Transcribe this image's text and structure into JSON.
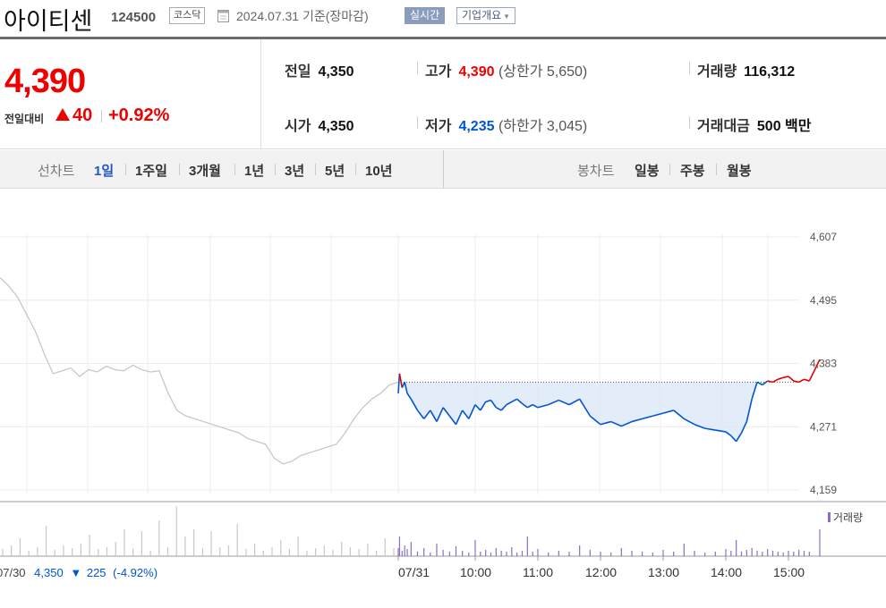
{
  "header": {
    "stock_name": "아이티센",
    "stock_code": "124500",
    "market": "코스닥",
    "as_of": "2024.07.31  기준(장마감)",
    "realtime_label": "실시간",
    "company_info_label": "기업개요"
  },
  "summary": {
    "current_price": "4,390",
    "change_label": "전일대비",
    "change_value": "40",
    "change_pct": "+0.92%",
    "prev_label": "전일",
    "prev_value": "4,350",
    "high_label": "고가",
    "high_value": "4,390",
    "upper_limit": "(상한가 5,650)",
    "volume_label": "거래량",
    "volume_value": "116,312",
    "open_label": "시가",
    "open_value": "4,350",
    "low_label": "저가",
    "low_value": "4,235",
    "lower_limit": "(하한가 3,045)",
    "turnover_label": "거래대금",
    "turnover_value": "500 백만"
  },
  "tabs": {
    "line_chart_label": "선차트",
    "line_ranges": [
      "1일",
      "1주일",
      "3개월",
      "1년",
      "3년",
      "5년",
      "10년"
    ],
    "active_range": "1일",
    "candle_chart_label": "봉차트",
    "candle_ranges": [
      "일봉",
      "주봉",
      "월봉"
    ]
  },
  "chart_data": {
    "type": "line",
    "y_ticks": [
      "4,607",
      "4,495",
      "4,383",
      "4,271",
      "4,159"
    ],
    "ylim": [
      4159,
      4607
    ],
    "x_ticks": [
      "07/31",
      "10:00",
      "11:00",
      "12:00",
      "13:00",
      "14:00",
      "15:00"
    ],
    "baseline": 4350,
    "volume_legend": "거래량",
    "prev_day_caption": {
      "date": "07/30",
      "price": "4,350",
      "change": "225",
      "pct": "(-4.92%)"
    },
    "prev_day_series": {
      "name": "07/30",
      "values": [
        4535,
        4520,
        4500,
        4470,
        4440,
        4400,
        4365,
        4370,
        4375,
        4360,
        4372,
        4368,
        4378,
        4372,
        4370,
        4380,
        4372,
        4368,
        4370,
        4330,
        4300,
        4290,
        4285,
        4280,
        4275,
        4270,
        4265,
        4260,
        4250,
        4245,
        4240,
        4215,
        4205,
        4210,
        4220,
        4225,
        4230,
        4235,
        4240,
        4260,
        4285,
        4305,
        4320,
        4330,
        4345,
        4350
      ]
    },
    "today_series": {
      "name": "07/31",
      "times": [
        "09:00",
        "09:01",
        "09:03",
        "09:05",
        "09:07",
        "09:10",
        "09:15",
        "09:20",
        "09:25",
        "09:30",
        "09:35",
        "09:40",
        "09:45",
        "09:50",
        "09:55",
        "10:00",
        "10:05",
        "10:10",
        "10:15",
        "10:20",
        "10:25",
        "10:30",
        "10:35",
        "10:40",
        "10:45",
        "10:50",
        "10:55",
        "11:00",
        "11:10",
        "11:20",
        "11:30",
        "11:40",
        "11:50",
        "12:00",
        "12:10",
        "12:20",
        "12:30",
        "12:40",
        "12:50",
        "13:00",
        "13:10",
        "13:20",
        "13:30",
        "13:40",
        "13:50",
        "14:00",
        "14:05",
        "14:10",
        "14:15",
        "14:20",
        "14:25",
        "14:30",
        "14:35",
        "14:40",
        "14:45",
        "14:50",
        "14:55",
        "15:00",
        "15:05",
        "15:10",
        "15:15",
        "15:20",
        "15:30"
      ],
      "values": [
        4330,
        4365,
        4340,
        4350,
        4330,
        4320,
        4300,
        4285,
        4300,
        4280,
        4305,
        4290,
        4275,
        4300,
        4285,
        4310,
        4300,
        4315,
        4318,
        4305,
        4300,
        4310,
        4315,
        4320,
        4312,
        4305,
        4310,
        4305,
        4310,
        4318,
        4310,
        4320,
        4290,
        4275,
        4280,
        4272,
        4280,
        4285,
        4290,
        4295,
        4300,
        4285,
        4275,
        4268,
        4265,
        4262,
        4255,
        4245,
        4260,
        4280,
        4320,
        4350,
        4345,
        4352,
        4350,
        4355,
        4358,
        4360,
        4352,
        4350,
        4355,
        4352,
        4390
      ]
    },
    "today_volume": [
      9,
      22,
      6,
      12,
      8,
      16,
      5,
      9,
      4,
      14,
      7,
      5,
      11,
      6,
      4,
      18,
      5,
      7,
      4,
      9,
      6,
      5,
      10,
      4,
      6,
      22,
      5,
      8,
      4,
      6,
      5,
      12,
      7,
      5,
      4,
      9,
      6,
      5,
      4,
      7,
      5,
      14,
      6,
      4,
      5,
      8,
      6,
      18,
      5,
      7,
      9,
      6,
      5,
      8,
      6,
      5,
      4,
      6,
      5,
      7,
      6,
      5,
      30
    ],
    "prev_volume": [
      8,
      12,
      20,
      6,
      10,
      34,
      7,
      12,
      9,
      14,
      24,
      8,
      10,
      16,
      30,
      9,
      28,
      6,
      40,
      10,
      56,
      22,
      30,
      9,
      28,
      10,
      12,
      36,
      8,
      14,
      6,
      10,
      18,
      8,
      22,
      6,
      9,
      12,
      7,
      16,
      10,
      8,
      14,
      6,
      20,
      9
    ]
  },
  "colors": {
    "up": "#e00000",
    "down": "#0055d4",
    "prev_line": "#c8c8c8",
    "fill": "#dce9f8",
    "volume": "#8c6fc4"
  }
}
